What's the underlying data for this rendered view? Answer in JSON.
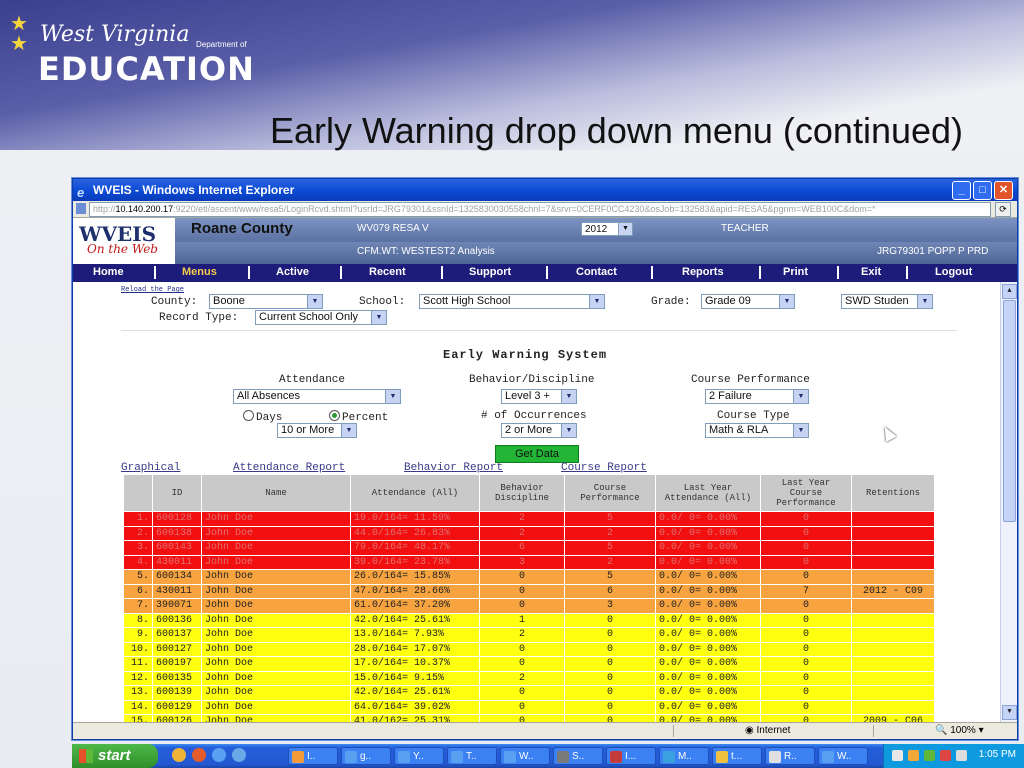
{
  "slide": {
    "logo_line1": "West Virginia",
    "logo_dept": "Department of",
    "logo_line2": "EDUCATION",
    "title": "Early Warning drop down menu (continued)"
  },
  "browser": {
    "window_title": "WVEIS - Windows Internet Explorer",
    "address_prefix": "http://",
    "address_host": "10.140.200.17",
    "address_rest": ":9220/etl/ascent/www/resa5/LoginRcvd.shtml?usrId=JRG79301&ssnId=1325830030558chnl=7&srvr=0CERF0CC4230&osJob=132583&apid=RESA5&pgnm=WEB100C&dom=*",
    "status_zone": "Internet",
    "zoom": "100%"
  },
  "app": {
    "logo_text": "WVEIS",
    "logo_sub": "On the Web",
    "county": "Roane County",
    "resa": "WV079 RESA V",
    "env": "CFM.WT: WESTEST2 Analysis",
    "year": "2012",
    "role": "TEACHER",
    "user": "JRG79301 POPP P PRD"
  },
  "nav": [
    "Home",
    "Menus",
    "Active",
    "Recent",
    "Support",
    "Contact",
    "Reports",
    "Print",
    "Exit",
    "Logout"
  ],
  "nav_active": "Menus",
  "filters": {
    "reload": "Reload the Page",
    "county_label": "County:",
    "county_value": "Boone",
    "school_label": "School:",
    "school_value": "Scott High School",
    "grade_label": "Grade:",
    "grade_value": "Grade 09",
    "swd_value": "SWD Studen",
    "record_label": "Record Type:",
    "record_value": "Current School Only"
  },
  "ews": {
    "title": "Early Warning System",
    "attendance_label": "Attendance",
    "attendance_value": "All Absences",
    "days_label": "Days",
    "percent_label": "Percent",
    "threshold_value": "10 or More",
    "behavior_label": "Behavior/Discipline",
    "behavior_value": "Level 3 +",
    "occurrences_label": "# of Occurrences",
    "occurrences_value": "2 or More",
    "course_perf_label": "Course Performance",
    "course_perf_value": "2 Failure",
    "course_type_label": "Course Type",
    "course_type_value": "Math & RLA",
    "get_data": "Get Data"
  },
  "links": [
    "Graphical",
    "Attendance Report",
    "Behavior Report",
    "Course Report"
  ],
  "table": {
    "headers": [
      "ID",
      "Name",
      "Attendance (All)",
      "Behavior Discipline",
      "Course Performance",
      "Last Year Attendance (All)",
      "Last Year Course Performance",
      "Retentions"
    ],
    "rows": [
      {
        "n": "1.",
        "id": "600128",
        "name": "John Doe",
        "att": "19.0/164= 11.59%",
        "beh": "2",
        "cp": "5",
        "lyatt": "0.0/ 0= 0.00%",
        "lycp": "0",
        "ret": "",
        "color": "red"
      },
      {
        "n": "2.",
        "id": "600138",
        "name": "John Doe",
        "att": "44.0/164= 26.83%",
        "beh": "2",
        "cp": "2",
        "lyatt": "0.0/ 0= 0.00%",
        "lycp": "0",
        "ret": "",
        "color": "red"
      },
      {
        "n": "3.",
        "id": "600143",
        "name": "John Doe",
        "att": "79.0/164= 48.17%",
        "beh": "6",
        "cp": "5",
        "lyatt": "0.0/ 0= 0.00%",
        "lycp": "0",
        "ret": "",
        "color": "red"
      },
      {
        "n": "4.",
        "id": "430011",
        "name": "John Doe",
        "att": "39.0/164= 23.78%",
        "beh": "3",
        "cp": "2",
        "lyatt": "0.0/ 0= 0.00%",
        "lycp": "0",
        "ret": "",
        "color": "red"
      },
      {
        "n": "5.",
        "id": "600134",
        "name": "John Doe",
        "att": "26.0/164= 15.85%",
        "beh": "0",
        "cp": "5",
        "lyatt": "0.0/ 0= 0.00%",
        "lycp": "0",
        "ret": "",
        "color": "orange"
      },
      {
        "n": "6.",
        "id": "430011",
        "name": "John Doe",
        "att": "47.0/164= 28.66%",
        "beh": "0",
        "cp": "6",
        "lyatt": "0.0/ 0= 0.00%",
        "lycp": "7",
        "ret": "2012 - C09",
        "color": "orange"
      },
      {
        "n": "7.",
        "id": "390071",
        "name": "John Doe",
        "att": "61.0/164= 37.20%",
        "beh": "0",
        "cp": "3",
        "lyatt": "0.0/ 0= 0.00%",
        "lycp": "0",
        "ret": "",
        "color": "orange"
      },
      {
        "n": "8.",
        "id": "600136",
        "name": "John Doe",
        "att": "42.0/164= 25.61%",
        "beh": "1",
        "cp": "0",
        "lyatt": "0.0/ 0= 0.00%",
        "lycp": "0",
        "ret": "",
        "color": "yellow"
      },
      {
        "n": "9.",
        "id": "600137",
        "name": "John Doe",
        "att": "13.0/164= 7.93%",
        "beh": "2",
        "cp": "0",
        "lyatt": "0.0/ 0= 0.00%",
        "lycp": "0",
        "ret": "",
        "color": "yellow"
      },
      {
        "n": "10.",
        "id": "600127",
        "name": "John Doe",
        "att": "28.0/164= 17.07%",
        "beh": "0",
        "cp": "0",
        "lyatt": "0.0/ 0= 0.00%",
        "lycp": "0",
        "ret": "",
        "color": "yellow"
      },
      {
        "n": "11.",
        "id": "600197",
        "name": "John Doe",
        "att": "17.0/164= 10.37%",
        "beh": "0",
        "cp": "0",
        "lyatt": "0.0/ 0= 0.00%",
        "lycp": "0",
        "ret": "",
        "color": "yellow"
      },
      {
        "n": "12.",
        "id": "600135",
        "name": "John Doe",
        "att": "15.0/164= 9.15%",
        "beh": "2",
        "cp": "0",
        "lyatt": "0.0/ 0= 0.00%",
        "lycp": "0",
        "ret": "",
        "color": "yellow"
      },
      {
        "n": "13.",
        "id": "600139",
        "name": "John Doe",
        "att": "42.0/164= 25.61%",
        "beh": "0",
        "cp": "0",
        "lyatt": "0.0/ 0= 0.00%",
        "lycp": "0",
        "ret": "",
        "color": "yellow"
      },
      {
        "n": "14.",
        "id": "600129",
        "name": "John Doe",
        "att": "64.0/164= 39.02%",
        "beh": "0",
        "cp": "0",
        "lyatt": "0.0/ 0= 0.00%",
        "lycp": "0",
        "ret": "",
        "color": "yellow"
      },
      {
        "n": "15.",
        "id": "600126",
        "name": "John Doe",
        "att": "41.0/162= 25.31%",
        "beh": "0",
        "cp": "0",
        "lyatt": "0.0/ 0= 0.00%",
        "lycp": "0",
        "ret": "2009 - C06",
        "color": "yellow"
      }
    ]
  },
  "taskbar": {
    "start": "start",
    "tasks": [
      "I..",
      "g..",
      "Y..",
      "T..",
      "W..",
      "S..",
      "I...",
      "M..",
      "t...",
      "R..",
      "W.."
    ],
    "clock": "1:05 PM"
  },
  "colors": {
    "red": "#f20f0f",
    "orange": "#f7a440",
    "yellow": "#ffff10",
    "nav": "#1d1c7a",
    "get_data": "#22b536"
  }
}
